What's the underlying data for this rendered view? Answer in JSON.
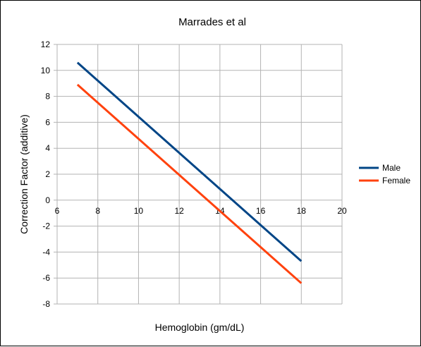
{
  "chart_data": {
    "type": "line",
    "title": "Marrades et al",
    "xlabel": "Hemoglobin (gm/dL)",
    "ylabel": "Correction Factor (additive)",
    "xlim": [
      6,
      20
    ],
    "ylim": [
      -8,
      12
    ],
    "x_ticks": [
      6,
      8,
      10,
      12,
      14,
      16,
      18,
      20
    ],
    "y_ticks": [
      -8,
      -6,
      -4,
      -2,
      0,
      2,
      4,
      6,
      8,
      10,
      12
    ],
    "grid": true,
    "legend_position": "right",
    "series": [
      {
        "name": "Male",
        "color": "#004586",
        "x": [
          7,
          18
        ],
        "y": [
          10.6,
          -4.7
        ]
      },
      {
        "name": "Female",
        "color": "#ff420e",
        "x": [
          7,
          18
        ],
        "y": [
          8.9,
          -6.4
        ]
      }
    ]
  }
}
